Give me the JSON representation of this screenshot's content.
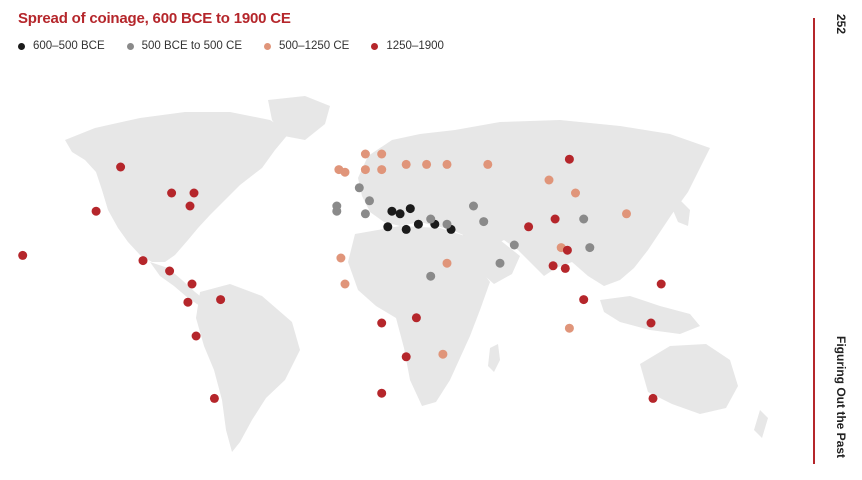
{
  "title": "Spread of coinage, 600 BCE to 1900 CE",
  "page_number": "252",
  "running_head": "Figuring Out the Past",
  "legend": [
    {
      "label": "600–500 BCE",
      "color": "#1b1b1b"
    },
    {
      "label": "500 BCE to 500 CE",
      "color": "#8a8a8a"
    },
    {
      "label": "500–1250 CE",
      "color": "#e0957a"
    },
    {
      "label": "1250–1900",
      "color": "#b5262b"
    }
  ],
  "colors": {
    "accent": "#b5262b",
    "land": "#e7e7e7",
    "period_1": "#1b1b1b",
    "period_2": "#8a8a8a",
    "period_3": "#e0957a",
    "period_4": "#b5262b"
  },
  "map_points": [
    {
      "region": "Anatolia",
      "lat": 39,
      "lon": 32,
      "period": 1
    },
    {
      "region": "Greece",
      "lat": 38,
      "lon": 23,
      "period": 1
    },
    {
      "region": "Aegean",
      "lat": 37,
      "lon": 27,
      "period": 1
    },
    {
      "region": "Levant",
      "lat": 33,
      "lon": 36,
      "period": 1
    },
    {
      "region": "Mesopotamia",
      "lat": 33,
      "lon": 44,
      "period": 1
    },
    {
      "region": "Persia",
      "lat": 31,
      "lon": 52,
      "period": 1
    },
    {
      "region": "Libya",
      "lat": 32,
      "lon": 21,
      "period": 1
    },
    {
      "region": "Egypt",
      "lat": 31,
      "lon": 30,
      "period": 1
    },
    {
      "region": "Iberia",
      "lat": 40,
      "lon": -4,
      "period": 2
    },
    {
      "region": "Spain",
      "lat": 38,
      "lon": -4,
      "period": 2
    },
    {
      "region": "Italy",
      "lat": 42,
      "lon": 12,
      "period": 2
    },
    {
      "region": "Alps",
      "lat": 47,
      "lon": 7,
      "period": 2
    },
    {
      "region": "Carthage",
      "lat": 37,
      "lon": 10,
      "period": 2
    },
    {
      "region": "Syria",
      "lat": 35,
      "lon": 42,
      "period": 2
    },
    {
      "region": "Iran",
      "lat": 33,
      "lon": 50,
      "period": 2
    },
    {
      "region": "Central Asia",
      "lat": 40,
      "lon": 63,
      "period": 2
    },
    {
      "region": "Afghanistan",
      "lat": 34,
      "lon": 68,
      "period": 2
    },
    {
      "region": "India",
      "lat": 25,
      "lon": 83,
      "period": 2
    },
    {
      "region": "Deccan",
      "lat": 18,
      "lon": 76,
      "period": 2
    },
    {
      "region": "North China",
      "lat": 35,
      "lon": 117,
      "period": 2
    },
    {
      "region": "South China",
      "lat": 24,
      "lon": 120,
      "period": 2
    },
    {
      "region": "Aksum",
      "lat": 13,
      "lon": 42,
      "period": 2
    },
    {
      "region": "British Isles",
      "lat": 54,
      "lon": -3,
      "period": 3
    },
    {
      "region": "Ireland",
      "lat": 53,
      "lon": 0,
      "period": 3
    },
    {
      "region": "Scandinavia",
      "lat": 60,
      "lon": 10,
      "period": 3
    },
    {
      "region": "Sweden",
      "lat": 60,
      "lon": 18,
      "period": 3
    },
    {
      "region": "Germany",
      "lat": 54,
      "lon": 10,
      "period": 3
    },
    {
      "region": "Poland",
      "lat": 54,
      "lon": 18,
      "period": 3
    },
    {
      "region": "Russia",
      "lat": 56,
      "lon": 30,
      "period": 3
    },
    {
      "region": "Volga",
      "lat": 56,
      "lon": 40,
      "period": 3
    },
    {
      "region": "Urals",
      "lat": 56,
      "lon": 50,
      "period": 3
    },
    {
      "region": "Siberia",
      "lat": 56,
      "lon": 70,
      "period": 3
    },
    {
      "region": "Mongolia",
      "lat": 50,
      "lon": 100,
      "period": 3
    },
    {
      "region": "Manchuria",
      "lat": 45,
      "lon": 113,
      "period": 3
    },
    {
      "region": "Japan",
      "lat": 37,
      "lon": 138,
      "period": 3
    },
    {
      "region": "Bengal",
      "lat": 24,
      "lon": 106,
      "period": 3
    },
    {
      "region": "Java",
      "lat": -7,
      "lon": 110,
      "period": 3
    },
    {
      "region": "Oman",
      "lat": 18,
      "lon": 50,
      "period": 3
    },
    {
      "region": "West Africa",
      "lat": 20,
      "lon": -2,
      "period": 3
    },
    {
      "region": "Gulf of Guinea",
      "lat": 10,
      "lon": 0,
      "period": 3
    },
    {
      "region": "Madagascar",
      "lat": -17,
      "lon": 48,
      "period": 3
    },
    {
      "region": "Siberia East",
      "lat": 58,
      "lon": 110,
      "period": 4
    },
    {
      "region": "Western Canada",
      "lat": 55,
      "lon": -110,
      "period": 4
    },
    {
      "region": "Great Lakes",
      "lat": 45,
      "lon": -85,
      "period": 4
    },
    {
      "region": "Quebec",
      "lat": 45,
      "lon": -74,
      "period": 4
    },
    {
      "region": "New England",
      "lat": 40,
      "lon": -76,
      "period": 4
    },
    {
      "region": "California",
      "lat": 38,
      "lon": -122,
      "period": 4
    },
    {
      "region": "Hawaii",
      "lat": 21,
      "lon": -158,
      "period": 4
    },
    {
      "region": "Mexico",
      "lat": 19,
      "lon": -99,
      "period": 4
    },
    {
      "region": "Cuba",
      "lat": 15,
      "lon": -86,
      "period": 4
    },
    {
      "region": "Colombia",
      "lat": 10,
      "lon": -75,
      "period": 4
    },
    {
      "region": "Ecuador",
      "lat": 3,
      "lon": -77,
      "period": 4
    },
    {
      "region": "Venezuela",
      "lat": 4,
      "lon": -61,
      "period": 4
    },
    {
      "region": "Peru",
      "lat": -10,
      "lon": -73,
      "period": 4
    },
    {
      "region": "Argentina",
      "lat": -34,
      "lon": -64,
      "period": 4
    },
    {
      "region": "Congo",
      "lat": -5,
      "lon": 18,
      "period": 4
    },
    {
      "region": "East Africa",
      "lat": -3,
      "lon": 35,
      "period": 4
    },
    {
      "region": "Southern Africa",
      "lat": -18,
      "lon": 30,
      "period": 4
    },
    {
      "region": "Cape",
      "lat": -32,
      "lon": 18,
      "period": 4
    },
    {
      "region": "Tibet",
      "lat": 32,
      "lon": 90,
      "period": 4
    },
    {
      "region": "Sichuan",
      "lat": 35,
      "lon": 103,
      "period": 4
    },
    {
      "region": "Guangdong",
      "lat": 23,
      "lon": 109,
      "period": 4
    },
    {
      "region": "Vietnam",
      "lat": 17,
      "lon": 102,
      "period": 4
    },
    {
      "region": "Indochina",
      "lat": 16,
      "lon": 108,
      "period": 4
    },
    {
      "region": "Malaya",
      "lat": 4,
      "lon": 117,
      "period": 4
    },
    {
      "region": "New Guinea",
      "lat": -5,
      "lon": 150,
      "period": 4
    },
    {
      "region": "Pacific",
      "lat": 10,
      "lon": 155,
      "period": 4
    },
    {
      "region": "Australia",
      "lat": -34,
      "lon": 151,
      "period": 4
    }
  ]
}
